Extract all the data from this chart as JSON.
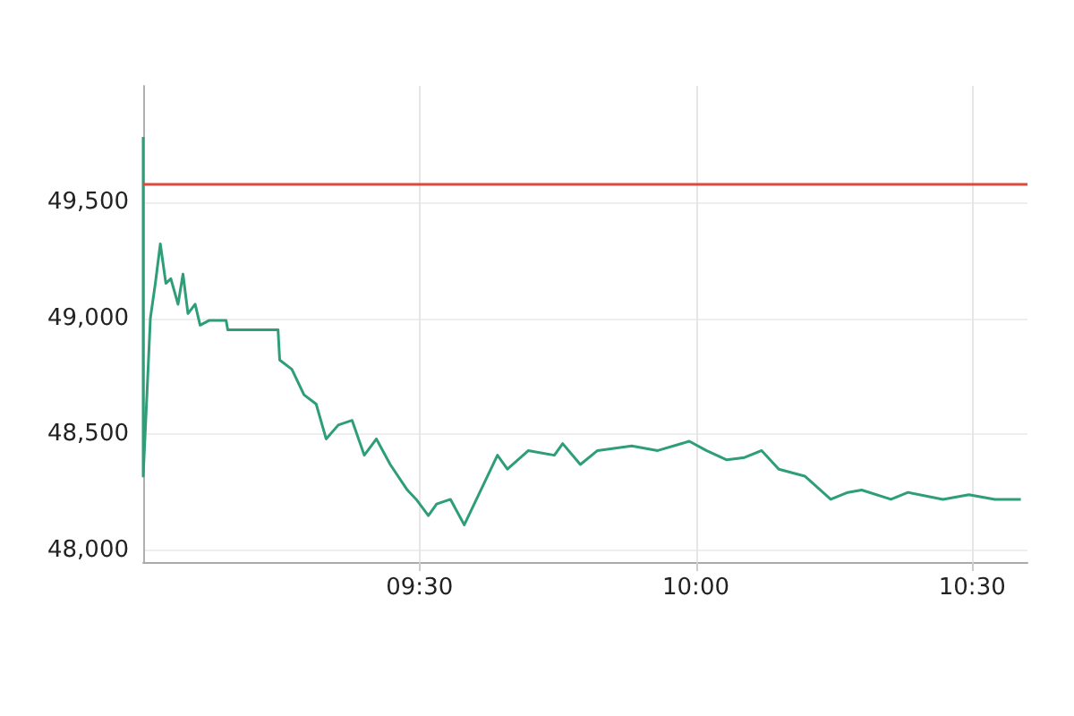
{
  "chart_data": {
    "type": "line",
    "x": [
      9.0,
      9.0,
      9.006,
      9.013,
      9.022,
      9.031,
      9.041,
      9.05,
      9.063,
      9.072,
      9.081,
      9.094,
      9.103,
      9.119,
      9.15,
      9.153,
      9.244,
      9.247,
      9.269,
      9.291,
      9.313,
      9.331,
      9.353,
      9.378,
      9.4,
      9.422,
      9.447,
      9.478,
      9.494,
      9.516,
      9.531,
      9.556,
      9.581,
      9.603,
      9.641,
      9.659,
      9.697,
      9.744,
      9.759,
      9.791,
      9.822,
      9.884,
      9.931,
      9.988,
      10.019,
      10.056,
      10.088,
      10.119,
      10.15,
      10.197,
      10.244,
      10.275,
      10.3,
      10.353,
      10.384,
      10.447,
      10.494,
      10.541,
      10.588
    ],
    "series": [
      {
        "color": "#2e9e78",
        "values": [
          49780,
          48320,
          48630,
          49000,
          49150,
          49320,
          49150,
          49170,
          49060,
          49190,
          49020,
          49060,
          48970,
          48990,
          48990,
          48950,
          48950,
          48820,
          48780,
          48670,
          48630,
          48480,
          48540,
          48560,
          48410,
          48480,
          48370,
          48260,
          48220,
          48150,
          48200,
          48220,
          48110,
          48220,
          48410,
          48350,
          48430,
          48410,
          48460,
          48370,
          48430,
          48450,
          48430,
          48470,
          48430,
          48390,
          48400,
          48430,
          48350,
          48320,
          48220,
          48250,
          48260,
          48220,
          48250,
          48220,
          48240,
          48220,
          48220
        ]
      }
    ],
    "xlim": [
      9.0,
      10.6
    ],
    "xticks": [
      {
        "value": 9.5,
        "label": "09:30"
      },
      {
        "value": 10.0,
        "label": "10:00"
      },
      {
        "value": 10.5,
        "label": "10:30"
      }
    ],
    "ylim": [
      47950,
      50000
    ],
    "yticks": [
      {
        "value": 48000,
        "label": "48,000"
      },
      {
        "value": 48500,
        "label": "48,500"
      },
      {
        "value": 49000,
        "label": "49,000"
      },
      {
        "value": 49500,
        "label": "49,500"
      }
    ],
    "ref_lines": [
      {
        "axis": "y",
        "value": 49580,
        "color": "#e0483e"
      }
    ],
    "grid": true,
    "marker": "none",
    "line_style": "solid"
  }
}
